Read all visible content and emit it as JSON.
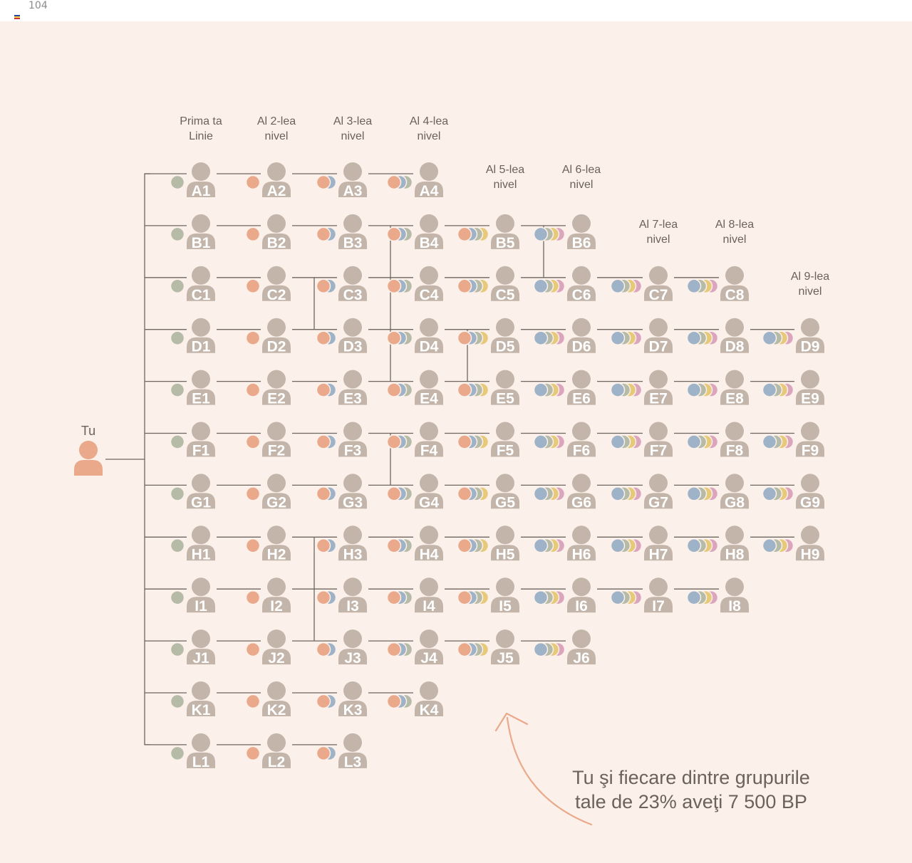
{
  "header": {
    "page_number": "104"
  },
  "levels": [
    {
      "id": "L1",
      "lines": [
        "Prima ta",
        "Linie"
      ]
    },
    {
      "id": "L2",
      "lines": [
        "Al 2-lea",
        "nivel"
      ]
    },
    {
      "id": "L3",
      "lines": [
        "Al 3-lea",
        "nivel"
      ]
    },
    {
      "id": "L4",
      "lines": [
        "Al 4-lea",
        "nivel"
      ]
    },
    {
      "id": "L5",
      "lines": [
        "Al 5-lea",
        "nivel"
      ]
    },
    {
      "id": "L6",
      "lines": [
        "Al 6-lea",
        "nivel"
      ]
    },
    {
      "id": "L7",
      "lines": [
        "Al 7-lea",
        "nivel"
      ]
    },
    {
      "id": "L8",
      "lines": [
        "Al 8-lea",
        "nivel"
      ]
    },
    {
      "id": "L9",
      "lines": [
        "Al 9-lea",
        "nivel"
      ]
    }
  ],
  "you": {
    "label": "Tu"
  },
  "rows": [
    {
      "letter": "A",
      "count": 4
    },
    {
      "letter": "B",
      "count": 6
    },
    {
      "letter": "C",
      "count": 8
    },
    {
      "letter": "D",
      "count": 9
    },
    {
      "letter": "E",
      "count": 9
    },
    {
      "letter": "F",
      "count": 9
    },
    {
      "letter": "G",
      "count": 9
    },
    {
      "letter": "H",
      "count": 9
    },
    {
      "letter": "I",
      "count": 8
    },
    {
      "letter": "J",
      "count": 6
    },
    {
      "letter": "K",
      "count": 4
    },
    {
      "letter": "L",
      "count": 3
    }
  ],
  "caption": [
    "Tu şi fiecare dintre grupurile",
    "tale de 23% aveţi 7 500 BP"
  ],
  "colors": {
    "background": "#fcf0ea",
    "person": "#c3b5aa",
    "you": "#e9a98a",
    "line": "#6e6660",
    "text": "#6b625b",
    "dot_green": "#b5bba6",
    "dot_orange": "#e9a98a",
    "dot_blue": "#9fb3c8",
    "dot_yellow": "#e6c979",
    "dot_pink": "#dba6bd"
  }
}
